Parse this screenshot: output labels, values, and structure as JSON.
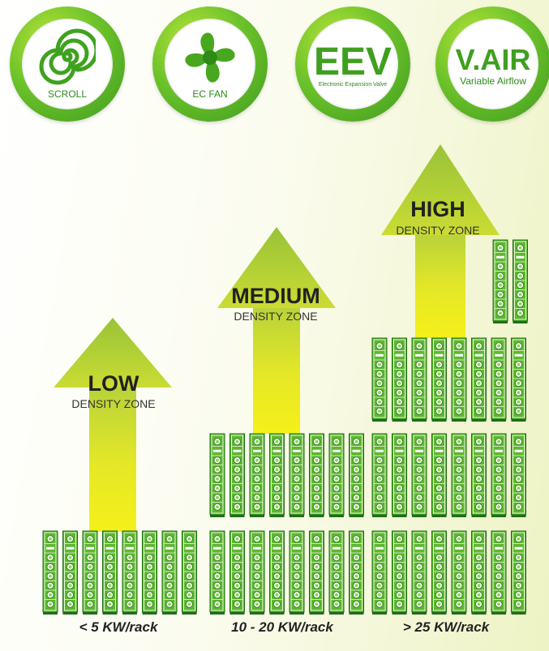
{
  "features": [
    {
      "icon": "spiral-icon",
      "label": "SCROLL"
    },
    {
      "icon": "fan-icon",
      "label": "EC FAN"
    },
    {
      "big": "EEV",
      "label": "Electronic Expansion Valve"
    },
    {
      "big": "V.AIR",
      "label": "Variable Airflow"
    }
  ],
  "zones": [
    {
      "title": "LOW",
      "subtitle": "DENSITY ZONE",
      "range": "< 5 KW/rack"
    },
    {
      "title": "MEDIUM",
      "subtitle": "DENSITY ZONE",
      "range": "10 - 20 KW/rack"
    },
    {
      "title": "HIGH",
      "subtitle": "DENSITY ZONE",
      "range": "> 25 KW/rack"
    }
  ],
  "colors": {
    "badge_green": "#5db82a",
    "rack_green": "#5cb82e",
    "rack_dark": "#1f6e1a",
    "arrow_top": "#a9cc3a",
    "arrow_bottom": "#f0ec1e"
  }
}
